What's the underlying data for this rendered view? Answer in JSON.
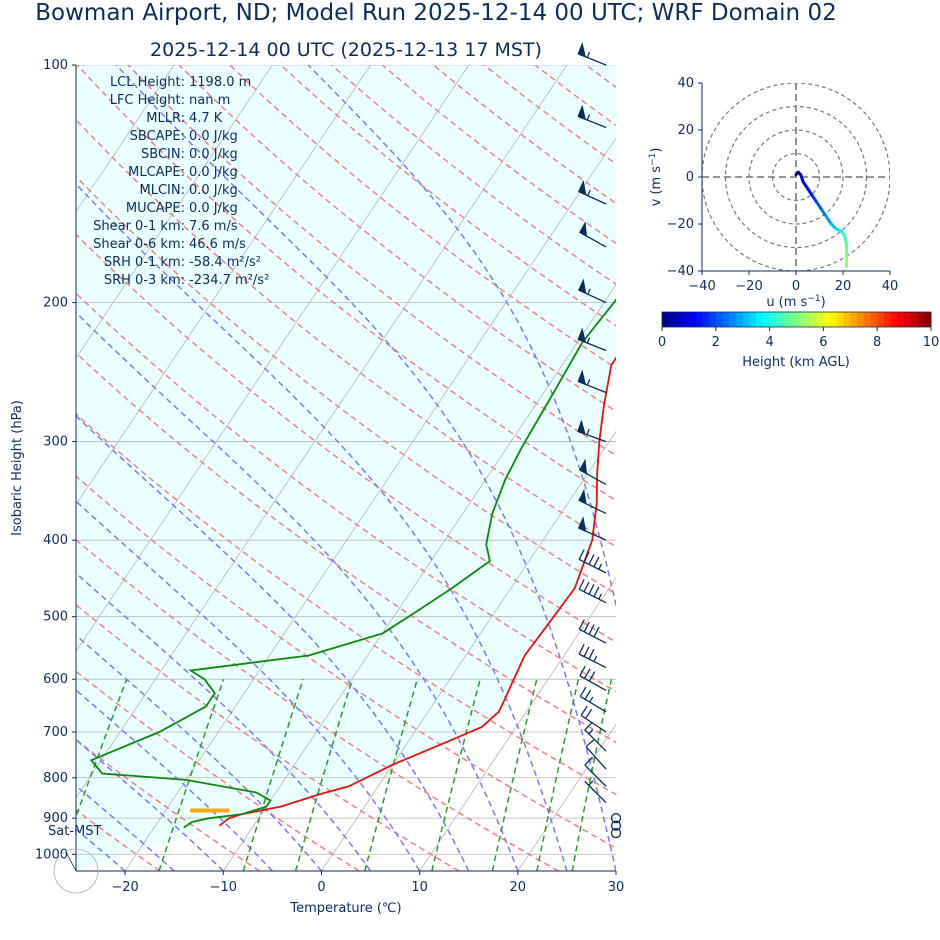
{
  "title": "Bowman Airport, ND; Model Run 2025-12-14 00 UTC; WRF Domain 02",
  "subtitle": "2025-12-14 00 UTC  (2025-12-13 17 MST)",
  "colors": {
    "text": "#0b2d5a",
    "temperature": "#e81010",
    "dewpoint": "#0a8a0a",
    "dry_adiabat": "#f08080",
    "moist_adiabat": "#7a7af0",
    "mixing_ratio": "#2a9a2a",
    "cape_shading": "#eaffff",
    "parcel_marker": "#ffa500"
  },
  "chart_data": [
    {
      "type": "line",
      "name": "skew-t",
      "xlabel": "Temperature (℃)",
      "ylabel": "Isobaric Height (hPa)",
      "xlim": [
        -25,
        30
      ],
      "ylim": [
        1050,
        100
      ],
      "log_y": true,
      "x_ticks": [
        "−20",
        "−10",
        "0",
        "10",
        "20",
        "30"
      ],
      "x_tick_values": [
        -20,
        -10,
        0,
        10,
        20,
        30
      ],
      "y_ticks": [
        "100",
        "200",
        "300",
        "400",
        "500",
        "600",
        "700",
        "800",
        "900",
        "1000"
      ],
      "y_tick_values": [
        100,
        200,
        300,
        400,
        500,
        600,
        700,
        800,
        900,
        1000
      ],
      "grid": true,
      "surface_label": "Sat-MST",
      "stats": [
        {
          "label": "LCL Height:",
          "value": "1198.0 m"
        },
        {
          "label": "LFC Height:",
          "value": "nan m"
        },
        {
          "label": "MLLR:",
          "value": "4.7 K"
        },
        {
          "label": "SBCAPE:",
          "value": "0.0 J/kg"
        },
        {
          "label": "SBCIN:",
          "value": "0.0 J/kg"
        },
        {
          "label": "MLCAPE:",
          "value": "0.0 J/kg"
        },
        {
          "label": "MLCIN:",
          "value": "0.0 J/kg"
        },
        {
          "label": "MUCAPE:",
          "value": "0.0 J/kg"
        },
        {
          "label": "Shear 0-1 km:",
          "value": "7.6 m/s"
        },
        {
          "label": "Shear 0-6 km:",
          "value": "46.6 m/s"
        },
        {
          "label": "SRH 0-1 km:",
          "value": "-58.4 m²/s²"
        },
        {
          "label": "SRH 0-3 km:",
          "value": "-234.7 m²/s²"
        }
      ],
      "series": [
        {
          "name": "temperature",
          "points": [
            [
              -13.5,
              920
            ],
            [
              -13.0,
              900
            ],
            [
              -12,
              890
            ],
            [
              -8.5,
              870
            ],
            [
              -5.5,
              840
            ],
            [
              -3,
              820
            ],
            [
              0,
              770
            ],
            [
              4,
              720
            ],
            [
              6.5,
              690
            ],
            [
              7.2,
              660
            ],
            [
              7,
              640
            ],
            [
              6.5,
              600
            ],
            [
              6,
              560
            ],
            [
              6.3,
              500
            ],
            [
              6.5,
              460
            ],
            [
              5,
              400
            ],
            [
              3,
              360
            ],
            [
              1,
              330
            ],
            [
              -1,
              300
            ],
            [
              -3,
              270
            ],
            [
              -5,
              240
            ],
            [
              -5,
              225
            ],
            [
              -2.5,
              185
            ],
            [
              4,
              160
            ],
            [
              10,
              140
            ],
            [
              15,
              120
            ],
            [
              21.5,
              100
            ]
          ]
        },
        {
          "name": "dewpoint",
          "points": [
            [
              -17,
              925
            ],
            [
              -16.5,
              910
            ],
            [
              -15,
              900
            ],
            [
              -12,
              890
            ],
            [
              -10,
              870
            ],
            [
              -10,
              855
            ],
            [
              -12,
              835
            ],
            [
              -20,
              805
            ],
            [
              -29,
              790
            ],
            [
              -31,
              760
            ],
            [
              -26,
              700
            ],
            [
              -23,
              650
            ],
            [
              -23,
              625
            ],
            [
              -25,
              600
            ],
            [
              -27,
              585
            ],
            [
              -16,
              560
            ],
            [
              -10,
              525
            ],
            [
              -8,
              492
            ],
            [
              -6,
              460
            ],
            [
              -4,
              425
            ],
            [
              -5.5,
              405
            ],
            [
              -7,
              370
            ],
            [
              -8,
              335
            ],
            [
              -8.5,
              305
            ],
            [
              -9,
              260
            ],
            [
              -9.5,
              225
            ],
            [
              -9,
              200
            ],
            [
              -8.5,
              160
            ],
            [
              -6,
              130
            ],
            [
              -2,
              110
            ],
            [
              1.5,
              100
            ]
          ]
        },
        {
          "name": "hodograph",
          "points": [
            [
              0,
              1
            ],
            [
              1,
              2
            ],
            [
              2,
              1
            ],
            [
              3,
              -2
            ],
            [
              5,
              -5
            ],
            [
              7,
              -8
            ],
            [
              9,
              -11
            ],
            [
              11,
              -14
            ],
            [
              13,
              -17
            ],
            [
              15,
              -20
            ],
            [
              17,
              -22
            ],
            [
              19,
              -23
            ],
            [
              20,
              -24
            ],
            [
              21,
              -26
            ],
            [
              21.5,
              -29
            ],
            [
              21.5,
              -33
            ],
            [
              21.5,
              -38
            ]
          ]
        }
      ],
      "parcel_marker": {
        "t_start": -17.5,
        "t_end": -13.5,
        "pressure": 880
      },
      "wind_barbs": [
        {
          "p": 100,
          "u": 50,
          "v": -20
        },
        {
          "p": 120,
          "u": 50,
          "v": -20
        },
        {
          "p": 150,
          "u": 48,
          "v": -22
        },
        {
          "p": 170,
          "u": 45,
          "v": -25
        },
        {
          "p": 200,
          "u": 48,
          "v": -22
        },
        {
          "p": 230,
          "u": 50,
          "v": -20
        },
        {
          "p": 260,
          "u": 50,
          "v": -20
        },
        {
          "p": 300,
          "u": 50,
          "v": -18
        },
        {
          "p": 340,
          "u": 45,
          "v": -25
        },
        {
          "p": 370,
          "u": 45,
          "v": -22
        },
        {
          "p": 400,
          "u": 45,
          "v": -20
        },
        {
          "p": 440,
          "u": 40,
          "v": -20
        },
        {
          "p": 480,
          "u": 40,
          "v": -20
        },
        {
          "p": 540,
          "u": 35,
          "v": -18
        },
        {
          "p": 580,
          "u": 30,
          "v": -15
        },
        {
          "p": 620,
          "u": 25,
          "v": -14
        },
        {
          "p": 660,
          "u": 20,
          "v": -12
        },
        {
          "p": 700,
          "u": 15,
          "v": -10
        },
        {
          "p": 740,
          "u": 10,
          "v": -10
        },
        {
          "p": 780,
          "u": 8,
          "v": -9
        },
        {
          "p": 820,
          "u": 6,
          "v": -6
        },
        {
          "p": 860,
          "u": 5,
          "v": -5
        },
        {
          "p": 900,
          "u": 0,
          "v": 0
        },
        {
          "p": 920,
          "u": 0,
          "v": 0
        },
        {
          "p": 940,
          "u": 0,
          "v": 0
        }
      ]
    },
    {
      "type": "line",
      "name": "hodograph",
      "xlabel": "u (m s",
      "ylabel": "v (m s",
      "label_superscript": "−1",
      "label_suffix": ")",
      "xlim": [
        -40,
        40
      ],
      "ylim": [
        -40,
        40
      ],
      "x_ticks": [
        "−40",
        "−20",
        "0",
        "20",
        "40"
      ],
      "x_tick_values": [
        -40,
        -20,
        0,
        20,
        40
      ],
      "y_ticks": [
        "−40",
        "−20",
        "0",
        "20",
        "40"
      ],
      "y_tick_values": [
        -40,
        -20,
        0,
        20,
        40
      ],
      "rings": [
        10,
        20,
        30,
        40
      ]
    },
    {
      "type": "heatmap",
      "name": "colorbar",
      "label": "Height (km AGL)",
      "range": [
        0,
        10
      ],
      "ticks": [
        "0",
        "2",
        "4",
        "6",
        "8",
        "10"
      ],
      "tick_values": [
        0,
        2,
        4,
        6,
        8,
        10
      ],
      "colormap": [
        "#00007f",
        "#0000ff",
        "#007fff",
        "#00ffff",
        "#7fff7f",
        "#ffff00",
        "#ff7f00",
        "#ff0000",
        "#7f0000"
      ]
    }
  ]
}
